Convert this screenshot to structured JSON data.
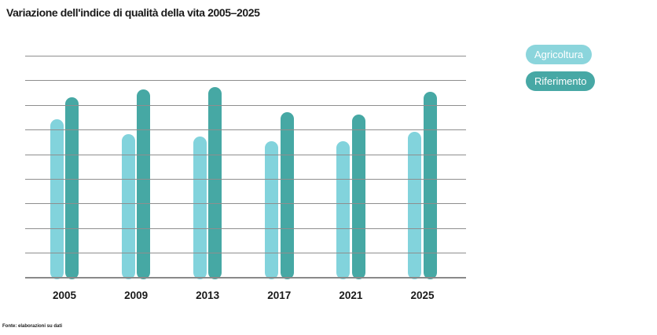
{
  "title": "Variazione dell'indice di qualità della vita 2005–2025",
  "footer": "Fonte: elaborazioni su dati",
  "legend": [
    {
      "label": "Agricoltura",
      "color": "#8bd5dc"
    },
    {
      "label": "Riferimento",
      "color": "#47a8a5"
    }
  ],
  "colors": {
    "bar_light": "#82d3dc",
    "bar_dark": "#46a8a4",
    "gridline": "#8e8e8e",
    "axis": "#898989",
    "text": "#1a1a1a",
    "background": "#ffffff"
  },
  "chart_data": {
    "type": "bar",
    "title": "Variazione dell'indice di qualità della vita 2005–2025",
    "categories": [
      "2005",
      "2009",
      "2013",
      "2017",
      "2021",
      "2025"
    ],
    "series": [
      {
        "name": "Agricoltura",
        "color": "#82d3dc",
        "values": [
          65,
          59,
          58,
          56,
          56,
          60
        ]
      },
      {
        "name": "Riferimento",
        "color": "#46a8a4",
        "values": [
          74,
          77,
          78,
          68,
          67,
          76
        ]
      }
    ],
    "xlabel": "",
    "ylabel": "",
    "ylim": [
      0,
      90
    ],
    "gridline_step": 10,
    "grid": true,
    "y_tick_labels_visible": false,
    "legend_position": "top-right"
  }
}
